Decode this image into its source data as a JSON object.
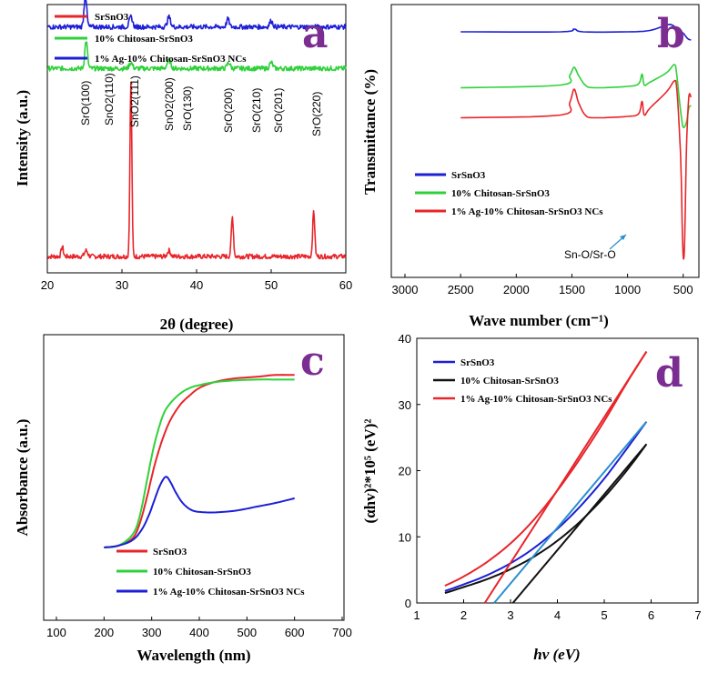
{
  "figure": {
    "colors": {
      "red": "#e8252a",
      "green": "#2fd13a",
      "blue": "#1d1fd6",
      "black": "#111111",
      "cyan": "#2a8fd0",
      "panel_label": "#7b2d91"
    }
  },
  "chart_data": [
    {
      "panel": "a",
      "type": "line",
      "title": "",
      "xlabel": "2θ (degree)",
      "ylabel": "Intensity (a.u.)",
      "xlim": [
        20,
        60
      ],
      "xticks": [
        20,
        30,
        40,
        50,
        60
      ],
      "legend": [
        "SrSnO3",
        "10% Chitosan-SrSnO3",
        "1% Ag-10% Chitosan-SrSnO3 NCs"
      ],
      "peak_labels": [
        "SrO(100)",
        "SnO2(110)",
        "SnO2(111)",
        "SnO2(200)",
        "SrO(130)",
        "SrO(200)",
        "SrO(210)",
        "SrO(201)",
        "SrO(220)"
      ],
      "series": [
        {
          "name": "SrSnO3",
          "color": "red",
          "baseline": 0.0,
          "noise": 0.012,
          "peaks": [
            [
              22,
              0.05,
              0.2
            ],
            [
              25.2,
              0.03,
              0.3
            ],
            [
              31.2,
              0.88,
              0.18
            ],
            [
              36.3,
              0.03,
              0.3
            ],
            [
              44.8,
              0.2,
              0.2
            ],
            [
              55.7,
              0.23,
              0.2
            ]
          ]
        },
        {
          "name": "10% Chitosan-SrSnO3",
          "color": "green",
          "baseline": 0.95,
          "noise": 0.012,
          "peaks": [
            [
              25.2,
              0.14,
              0.25
            ],
            [
              31.2,
              0.03,
              0.3
            ],
            [
              36.3,
              0.04,
              0.35
            ],
            [
              44.3,
              0.03,
              0.3
            ],
            [
              50,
              0.03,
              0.3
            ]
          ]
        },
        {
          "name": "1% Ag-10% Chitosan-SrSnO3 NCs",
          "color": "blue",
          "baseline": 1.16,
          "noise": 0.012,
          "peaks": [
            [
              25.1,
              0.16,
              0.25
            ],
            [
              31.2,
              0.05,
              0.3
            ],
            [
              36.3,
              0.05,
              0.3
            ],
            [
              44.2,
              0.04,
              0.25
            ],
            [
              50,
              0.03,
              0.3
            ]
          ]
        }
      ]
    },
    {
      "panel": "b",
      "type": "line",
      "title": "",
      "xlabel": "Wave number (cm⁻¹)",
      "ylabel": "Transmittance (%)",
      "xlim": [
        3000,
        400
      ],
      "xticks": [
        3000,
        2500,
        2000,
        1500,
        1000,
        500
      ],
      "legend": [
        "SrSnO3",
        "10% Chitosan-SrSnO3",
        "1% Ag-10% Chitosan-SrSnO3 NCs"
      ],
      "annotation": "Sn-O/Sr-O",
      "series": [
        {
          "name": "SrSnO3",
          "color": "blue",
          "x": [
            2500,
            1600,
            1480,
            1400,
            1000,
            800,
            650,
            600,
            550,
            500,
            460,
            430
          ],
          "y": [
            0.9,
            0.9,
            0.91,
            0.9,
            0.9,
            0.905,
            0.925,
            0.925,
            0.91,
            0.895,
            0.875,
            0.87
          ]
        },
        {
          "name": "10% Chitosan-SrSnO3",
          "color": "green",
          "x": [
            2500,
            1600,
            1520,
            1480,
            1440,
            1380,
            1300,
            1000,
            900,
            870,
            850,
            800,
            650,
            580,
            560,
            540,
            520,
            500,
            470,
            450,
            430
          ],
          "y": [
            0.695,
            0.705,
            0.74,
            0.77,
            0.74,
            0.705,
            0.695,
            0.7,
            0.71,
            0.745,
            0.705,
            0.715,
            0.75,
            0.78,
            0.75,
            0.67,
            0.6,
            0.55,
            0.57,
            0.62,
            0.63
          ]
        },
        {
          "name": "1% Ag-10% Chitosan-SrSnO3 NCs",
          "color": "red",
          "x": [
            2500,
            1600,
            1520,
            1480,
            1440,
            1380,
            1300,
            1000,
            900,
            870,
            850,
            800,
            650,
            580,
            560,
            540,
            520,
            505,
            490,
            470,
            450,
            430
          ],
          "y": [
            0.585,
            0.595,
            0.64,
            0.69,
            0.64,
            0.595,
            0.585,
            0.59,
            0.6,
            0.645,
            0.595,
            0.62,
            0.68,
            0.72,
            0.7,
            0.58,
            0.4,
            0.12,
            0.1,
            0.48,
            0.66,
            0.66
          ]
        }
      ]
    },
    {
      "panel": "c",
      "type": "line",
      "title": "",
      "xlabel": "Wavelength (nm)",
      "ylabel": "Absorbance (a.u.)",
      "xlim": [
        100,
        700
      ],
      "xticks": [
        100,
        200,
        300,
        400,
        500,
        600,
        700
      ],
      "legend": [
        "SrSnO3",
        "10% Chitosan-SrSnO3",
        "1% Ag-10% Chitosan-SrSnO3 NCs"
      ],
      "series": [
        {
          "name": "SrSnO3",
          "color": "red",
          "x": [
            200,
            230,
            260,
            275,
            290,
            300,
            310,
            325,
            340,
            360,
            380,
            400,
            430,
            470,
            520,
            560,
            600
          ],
          "y": [
            0.0,
            0.01,
            0.05,
            0.13,
            0.27,
            0.38,
            0.48,
            0.6,
            0.69,
            0.77,
            0.82,
            0.86,
            0.89,
            0.91,
            0.92,
            0.93,
            0.93
          ]
        },
        {
          "name": "10% Chitosan-SrSnO3",
          "color": "green",
          "x": [
            200,
            230,
            260,
            275,
            290,
            300,
            310,
            325,
            340,
            360,
            380,
            400,
            430,
            470,
            520,
            560,
            600
          ],
          "y": [
            0.0,
            0.01,
            0.07,
            0.17,
            0.36,
            0.49,
            0.6,
            0.72,
            0.78,
            0.83,
            0.86,
            0.875,
            0.89,
            0.9,
            0.905,
            0.905,
            0.905
          ]
        },
        {
          "name": "1% Ag-10% Chitosan-SrSnO3 NCs",
          "color": "blue",
          "x": [
            200,
            230,
            260,
            280,
            295,
            305,
            315,
            325,
            332,
            340,
            350,
            365,
            385,
            410,
            440,
            480,
            520,
            560,
            600
          ],
          "y": [
            0.0,
            0.01,
            0.04,
            0.1,
            0.18,
            0.25,
            0.32,
            0.37,
            0.38,
            0.35,
            0.3,
            0.24,
            0.2,
            0.19,
            0.19,
            0.2,
            0.22,
            0.24,
            0.265
          ]
        }
      ]
    },
    {
      "panel": "d",
      "type": "line",
      "title": "",
      "xlabel": "hv (eV)",
      "ylabel": "(αhv)²*10⁵ (eV)²",
      "xlim": [
        1,
        7
      ],
      "ylim": [
        0,
        40
      ],
      "xticks": [
        1,
        2,
        3,
        4,
        5,
        6,
        7
      ],
      "yticks": [
        0,
        10,
        20,
        30,
        40
      ],
      "legend": [
        "SrSnO3",
        "10% Chitosan-SrSnO3",
        "1% Ag-10% Chitosan-SrSnO3 NCs"
      ],
      "series": [
        {
          "name": "SrSnO3",
          "color": "blue",
          "x": [
            1.6,
            2.0,
            2.5,
            3.0,
            3.5,
            4.0,
            4.5,
            5.0,
            5.5,
            5.9
          ],
          "y": [
            1.8,
            2.8,
            4.2,
            6.0,
            8.3,
            11.2,
            14.7,
            18.8,
            23.5,
            27.4
          ]
        },
        {
          "name": "10% Chitosan-SrSnO3",
          "color": "black",
          "x": [
            1.6,
            2.0,
            2.5,
            3.0,
            3.5,
            4.0,
            4.5,
            5.0,
            5.5,
            5.9
          ],
          "y": [
            1.5,
            2.4,
            3.6,
            5.1,
            7.0,
            9.4,
            12.4,
            16.0,
            20.2,
            24.0
          ]
        },
        {
          "name": "1% Ag-10% Chitosan-SrSnO3 NCs",
          "color": "red",
          "x": [
            1.6,
            2.0,
            2.5,
            3.0,
            3.5,
            4.0,
            4.5,
            5.0,
            5.5,
            5.9
          ],
          "y": [
            2.6,
            4.0,
            6.2,
            9.0,
            12.6,
            17.0,
            22.0,
            27.5,
            33.5,
            38.0
          ]
        },
        {
          "name": "tangent-SrSnO3",
          "color": "cyan",
          "x": [
            2.65,
            5.9
          ],
          "y": [
            0,
            27.4
          ]
        },
        {
          "name": "tangent-Chitosan",
          "color": "black",
          "x": [
            3.05,
            5.9
          ],
          "y": [
            0,
            24.0
          ]
        },
        {
          "name": "tangent-Ag",
          "color": "red",
          "x": [
            2.45,
            5.9
          ],
          "y": [
            0,
            38.0
          ]
        }
      ]
    }
  ],
  "panel_labels": [
    "a",
    "b",
    "c",
    "d"
  ]
}
